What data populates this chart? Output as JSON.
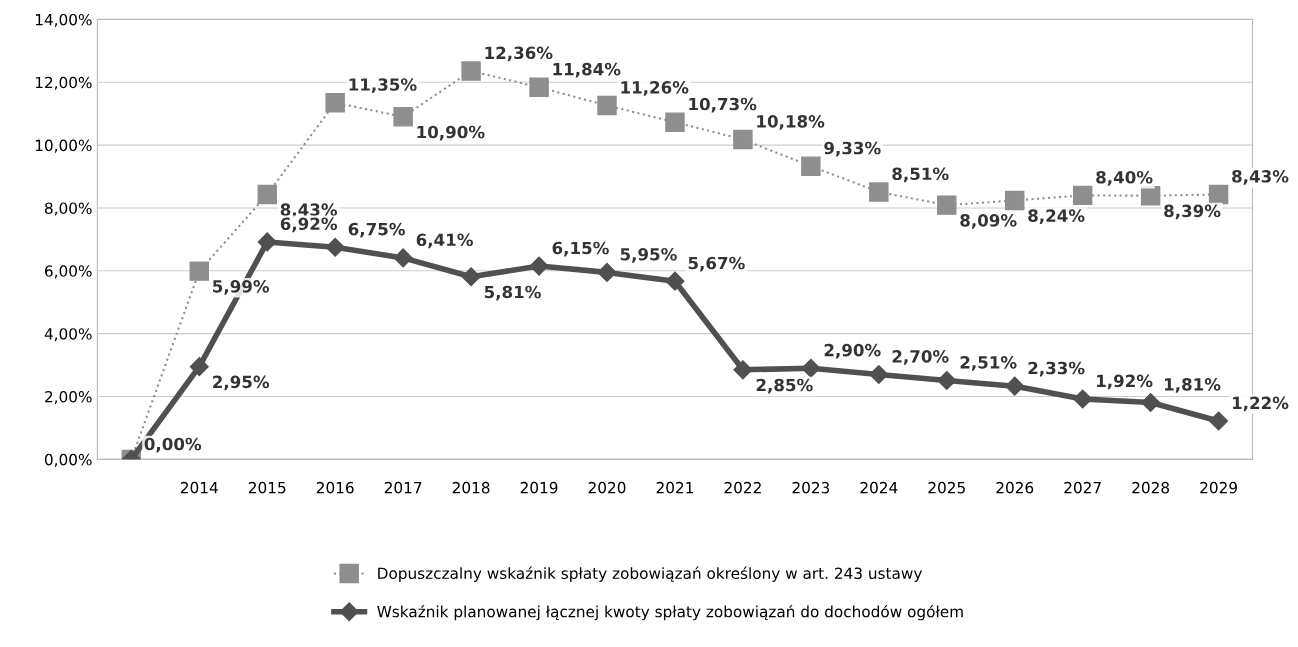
{
  "chart_data": {
    "type": "line",
    "categories": [
      null,
      "2014",
      "2015",
      "2016",
      "2017",
      "2018",
      "2019",
      "2020",
      "2021",
      "2022",
      "2023",
      "2024",
      "2025",
      "2026",
      "2027",
      "2028",
      "2029"
    ],
    "series": [
      {
        "name": "Dopuszczalny wskaźnik spłaty zobowiązań określony w art. 243 ustawy",
        "color": "#8e8e8e",
        "marker": "square",
        "line_style": "dotted",
        "values": [
          0,
          5.99,
          8.43,
          11.35,
          10.9,
          12.36,
          11.84,
          11.26,
          10.73,
          10.18,
          9.33,
          8.51,
          8.09,
          8.24,
          8.4,
          8.39,
          8.43
        ],
        "value_labels": [
          null,
          "5,99%",
          "8,43%",
          "11,35%",
          "10,90%",
          "12,36%",
          "11,84%",
          "11,26%",
          "10,73%",
          "10,18%",
          "9,33%",
          "8,51%",
          "8,09%",
          "8,24%",
          "8,40%",
          "8,39%",
          "8,43%"
        ]
      },
      {
        "name": "Wskaźnik planowanej łącznej kwoty spłaty zobowiązań do dochodów ogółem",
        "color": "#505050",
        "marker": "diamond",
        "line_style": "solid",
        "values": [
          0,
          2.95,
          6.92,
          6.75,
          6.41,
          5.81,
          6.15,
          5.95,
          5.67,
          2.85,
          2.9,
          2.7,
          2.51,
          2.33,
          1.92,
          1.81,
          1.22
        ],
        "value_labels": [
          "0,00%",
          "2,95%",
          "6,92%",
          "6,75%",
          "6,41%",
          "5,81%",
          "6,15%",
          "5,95%",
          "5,67%",
          "2,85%",
          "2,90%",
          "2,70%",
          "2,51%",
          "2,33%",
          "1,92%",
          "1,81%",
          "1,22%"
        ]
      }
    ],
    "ylim": [
      0,
      14
    ],
    "yticks": [
      {
        "value": 0,
        "label": "0,00%"
      },
      {
        "value": 2,
        "label": "2,00%"
      },
      {
        "value": 4,
        "label": "4,00%"
      },
      {
        "value": 6,
        "label": "6,00%"
      },
      {
        "value": 8,
        "label": "8,00%"
      },
      {
        "value": 10,
        "label": "10,00%"
      },
      {
        "value": 12,
        "label": "12,00%"
      },
      {
        "value": 14,
        "label": "14,00%"
      }
    ],
    "grid": "y",
    "legend": "bottom"
  }
}
